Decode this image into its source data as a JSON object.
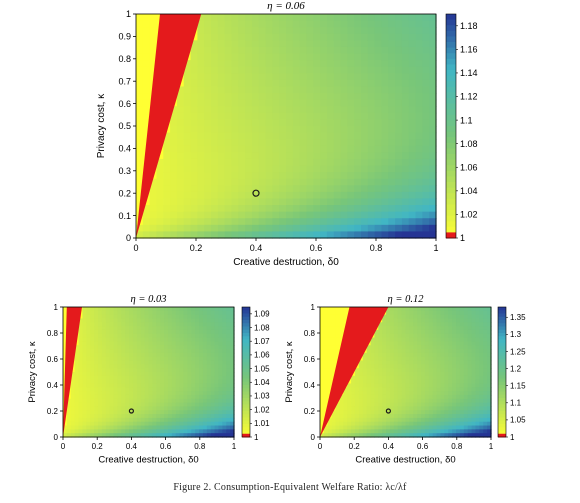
{
  "figure": {
    "caption": "Figure 2. Consumption-Equivalent Welfare Ratio: λc/λf"
  },
  "colors": {
    "red": "#e41a1c",
    "yellow": "#ffff33",
    "green": "#78c679",
    "cyan": "#41b6c4",
    "blue": "#253494"
  },
  "chart_data": [
    {
      "type": "heatmap",
      "title": "η = 0.06",
      "xlabel": "Creative destruction, δ0",
      "ylabel": "Privacy cost, κ",
      "xlim": [
        0,
        1
      ],
      "ylim": [
        0,
        1
      ],
      "xticks": [
        "0",
        "0.2",
        "0.4",
        "0.6",
        "0.8",
        "1"
      ],
      "yticks": [
        "0",
        "0.1",
        "0.2",
        "0.3",
        "0.4",
        "0.5",
        "0.6",
        "0.7",
        "0.8",
        "0.9",
        "1"
      ],
      "colorbar": {
        "min": 1,
        "max": 1.19,
        "ticks": [
          "1",
          "1.02",
          "1.04",
          "1.06",
          "1.08",
          "1.1",
          "1.12",
          "1.14",
          "1.16",
          "1.18"
        ]
      },
      "marker": {
        "x": 0.4,
        "y": 0.2
      },
      "red_region": {
        "slope_low": 4.6,
        "slope_high": 12.5
      },
      "max_at_high_delta": 1.19
    },
    {
      "type": "heatmap",
      "title": "η = 0.03",
      "xlabel": "Creative destruction, δ0",
      "ylabel": "Privacy cost, κ",
      "xlim": [
        0,
        1
      ],
      "ylim": [
        0,
        1
      ],
      "xticks": [
        "0",
        "0.2",
        "0.4",
        "0.6",
        "0.8",
        "1"
      ],
      "yticks": [
        "0",
        "0.2",
        "0.4",
        "0.6",
        "0.8",
        "1"
      ],
      "colorbar": {
        "min": 1,
        "max": 1.095,
        "ticks": [
          "1",
          "1.01",
          "1.02",
          "1.03",
          "1.04",
          "1.05",
          "1.06",
          "1.07",
          "1.08",
          "1.09"
        ]
      },
      "marker": {
        "x": 0.4,
        "y": 0.2
      },
      "red_region": {
        "slope_low": 9,
        "slope_high": 45
      },
      "max_at_high_delta": 1.095
    },
    {
      "type": "heatmap",
      "title": "η = 0.12",
      "xlabel": "Creative destruction, δ0",
      "ylabel": "Privacy cost, κ",
      "xlim": [
        0,
        1
      ],
      "ylim": [
        0,
        1
      ],
      "xticks": [
        "0",
        "0.2",
        "0.4",
        "0.6",
        "0.8",
        "1"
      ],
      "yticks": [
        "0",
        "0.2",
        "0.4",
        "0.6",
        "0.8",
        "1"
      ],
      "colorbar": {
        "min": 1,
        "max": 1.38,
        "ticks": [
          "1",
          "1.05",
          "1.1",
          "1.15",
          "1.2",
          "1.25",
          "1.3",
          "1.35"
        ]
      },
      "marker": {
        "x": 0.4,
        "y": 0.2
      },
      "red_region": {
        "slope_low": 2.5,
        "slope_high": 5.8
      },
      "max_at_high_delta": 1.38
    }
  ]
}
